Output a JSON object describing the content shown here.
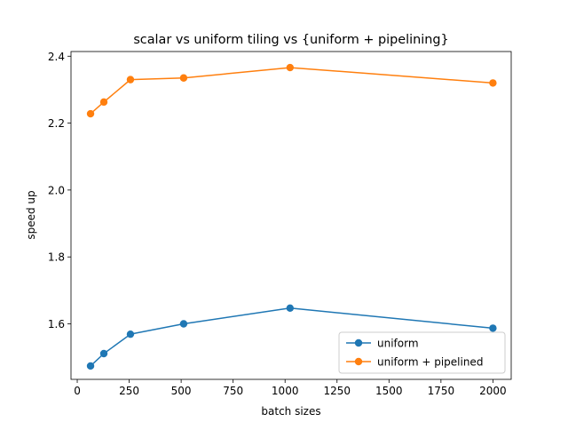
{
  "chart_data": {
    "type": "line",
    "title": "scalar vs uniform tiling vs {uniform + pipelining}",
    "xlabel": "batch sizes",
    "ylabel": "speed up",
    "xlim": [
      -30,
      2088
    ],
    "ylim": [
      1.434,
      2.414
    ],
    "xticks": [
      0,
      250,
      500,
      750,
      1000,
      1250,
      1500,
      1750,
      2000
    ],
    "yticks": [
      1.6,
      1.8,
      2.0,
      2.2,
      2.4
    ],
    "xtick_labels": [
      "0",
      "250",
      "500",
      "750",
      "1000",
      "1250",
      "1500",
      "1750",
      "2000"
    ],
    "ytick_labels": [
      "1.6",
      "1.8",
      "2.0",
      "2.2",
      "2.4"
    ],
    "grid": false,
    "legend_position": "lower-right",
    "x": [
      64,
      128,
      256,
      512,
      1024,
      2000
    ],
    "series": [
      {
        "name": "uniform",
        "color": "#1f77b4",
        "marker": "circle",
        "values": [
          1.474,
          1.511,
          1.569,
          1.6,
          1.647,
          1.587
        ]
      },
      {
        "name": "uniform + pipelined",
        "color": "#ff7f0e",
        "marker": "circle",
        "values": [
          2.228,
          2.263,
          2.33,
          2.335,
          2.366,
          2.32
        ]
      }
    ]
  }
}
